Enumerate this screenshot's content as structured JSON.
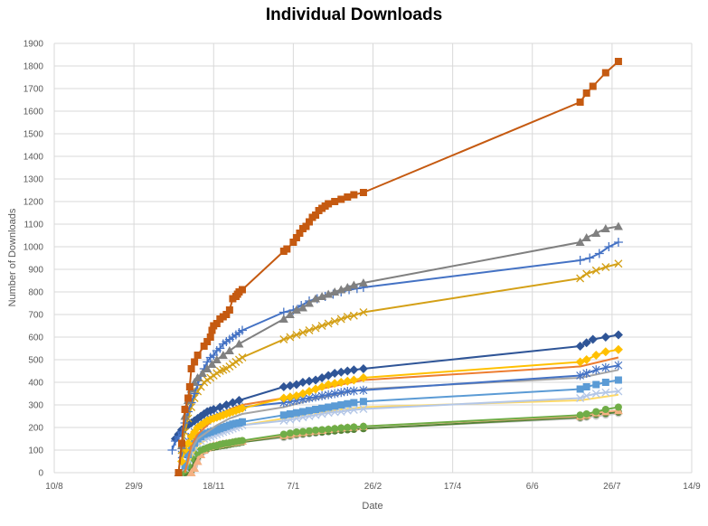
{
  "chart_data": {
    "type": "line",
    "title": "Individual Downloads",
    "xlabel": "Date",
    "ylabel": "Number of Downloads",
    "x_ticks": [
      "10/8",
      "29/9",
      "18/11",
      "7/1",
      "26/2",
      "17/4",
      "6/6",
      "26/7",
      "14/9"
    ],
    "x_tick_days": [
      0,
      50,
      100,
      150,
      200,
      250,
      300,
      350,
      400
    ],
    "ylim": [
      0,
      1900
    ],
    "y_ticks": [
      0,
      100,
      200,
      300,
      400,
      500,
      600,
      700,
      800,
      900,
      1000,
      1100,
      1200,
      1300,
      1400,
      1500,
      1600,
      1700,
      1800,
      1900
    ],
    "grid": true,
    "legend": "none",
    "series": [
      {
        "color": "#C55A11",
        "marker": "square",
        "x": [
          78,
          80,
          82,
          84,
          85,
          86,
          88,
          90,
          94,
          96,
          98,
          99,
          100,
          102,
          104,
          106,
          108,
          110,
          112,
          114,
          115,
          116,
          118,
          144,
          146,
          150,
          152,
          154,
          156,
          158,
          160,
          162,
          164,
          166,
          168,
          170,
          172,
          176,
          180,
          184,
          188,
          194,
          330,
          334,
          338,
          346,
          354
        ],
        "y": [
          0,
          130,
          280,
          330,
          380,
          460,
          490,
          520,
          560,
          580,
          600,
          630,
          650,
          660,
          680,
          690,
          700,
          720,
          770,
          780,
          790,
          800,
          810,
          980,
          990,
          1020,
          1040,
          1060,
          1080,
          1090,
          1110,
          1130,
          1140,
          1160,
          1170,
          1180,
          1190,
          1200,
          1210,
          1220,
          1230,
          1240,
          1640,
          1680,
          1710,
          1770,
          1820
        ]
      },
      {
        "color": "#808080",
        "marker": "triangle",
        "x": [
          78,
          80,
          82,
          84,
          86,
          88,
          90,
          93,
          96,
          99,
          102,
          106,
          110,
          116,
          144,
          148,
          152,
          156,
          160,
          164,
          168,
          172,
          176,
          180,
          184,
          188,
          194,
          330,
          334,
          340,
          346,
          354
        ],
        "y": [
          0,
          120,
          250,
          320,
          370,
          400,
          420,
          440,
          460,
          480,
          500,
          520,
          540,
          570,
          680,
          700,
          720,
          730,
          750,
          770,
          780,
          790,
          800,
          810,
          820,
          830,
          840,
          1020,
          1040,
          1060,
          1080,
          1090
        ]
      },
      {
        "color": "#4472C4",
        "marker": "plus",
        "x": [
          74,
          76,
          78,
          80,
          82,
          84,
          86,
          88,
          90,
          92,
          94,
          96,
          98,
          100,
          102,
          104,
          106,
          108,
          110,
          112,
          114,
          116,
          118,
          144,
          150,
          155,
          160,
          165,
          170,
          175,
          180,
          185,
          190,
          194,
          330,
          336,
          342,
          348,
          354
        ],
        "y": [
          100,
          140,
          160,
          180,
          220,
          270,
          310,
          350,
          390,
          430,
          460,
          490,
          510,
          520,
          540,
          550,
          570,
          580,
          590,
          600,
          610,
          620,
          630,
          710,
          720,
          740,
          760,
          770,
          780,
          790,
          800,
          810,
          815,
          820,
          940,
          950,
          970,
          1000,
          1020
        ]
      },
      {
        "color": "#D4A017",
        "marker": "x",
        "x": [
          80,
          82,
          84,
          86,
          88,
          90,
          92,
          94,
          96,
          98,
          100,
          102,
          104,
          106,
          108,
          110,
          112,
          114,
          116,
          118,
          144,
          148,
          152,
          156,
          160,
          164,
          168,
          172,
          176,
          180,
          184,
          188,
          194,
          330,
          334,
          340,
          346,
          354
        ],
        "y": [
          100,
          180,
          240,
          290,
          330,
          360,
          380,
          400,
          410,
          420,
          430,
          440,
          450,
          455,
          460,
          470,
          480,
          490,
          500,
          510,
          590,
          600,
          610,
          620,
          630,
          640,
          650,
          660,
          670,
          680,
          690,
          695,
          710,
          860,
          880,
          895,
          910,
          925
        ]
      },
      {
        "color": "#2F5597",
        "marker": "diamond",
        "x": [
          76,
          78,
          80,
          82,
          84,
          86,
          88,
          90,
          92,
          94,
          96,
          98,
          100,
          104,
          108,
          112,
          116,
          144,
          148,
          152,
          156,
          160,
          164,
          168,
          172,
          176,
          180,
          184,
          188,
          194,
          330,
          334,
          338,
          346,
          354
        ],
        "y": [
          150,
          170,
          190,
          200,
          210,
          220,
          230,
          240,
          250,
          260,
          270,
          275,
          280,
          290,
          300,
          310,
          320,
          380,
          385,
          390,
          400,
          405,
          410,
          420,
          430,
          440,
          445,
          450,
          455,
          460,
          560,
          575,
          590,
          600,
          610
        ]
      },
      {
        "color": "#FFC000",
        "marker": "diamond",
        "x": [
          80,
          82,
          84,
          86,
          88,
          90,
          92,
          94,
          96,
          98,
          100,
          102,
          104,
          106,
          108,
          110,
          112,
          114,
          116,
          118,
          144,
          148,
          152,
          156,
          160,
          164,
          168,
          172,
          176,
          180,
          184,
          188,
          194,
          330,
          334,
          340,
          346,
          354
        ],
        "y": [
          50,
          100,
          130,
          160,
          180,
          200,
          210,
          220,
          230,
          235,
          240,
          245,
          250,
          255,
          260,
          265,
          270,
          275,
          280,
          285,
          330,
          335,
          340,
          350,
          360,
          370,
          380,
          390,
          395,
          400,
          405,
          410,
          420,
          490,
          500,
          520,
          535,
          545
        ]
      },
      {
        "color": "#ED7D31",
        "marker": "none",
        "x": [
          82,
          86,
          90,
          96,
          102,
          110,
          118,
          144,
          160,
          180,
          194,
          330,
          354
        ],
        "y": [
          0,
          120,
          170,
          210,
          250,
          280,
          300,
          330,
          360,
          390,
          410,
          470,
          510
        ]
      },
      {
        "color": "#4472C4",
        "marker": "star",
        "x": [
          80,
          82,
          84,
          86,
          88,
          90,
          92,
          94,
          96,
          98,
          100,
          102,
          104,
          106,
          108,
          110,
          112,
          114,
          116,
          118,
          144,
          148,
          152,
          156,
          160,
          164,
          168,
          172,
          176,
          180,
          184,
          188,
          194,
          330,
          334,
          340,
          346,
          354
        ],
        "y": [
          80,
          110,
          140,
          160,
          180,
          200,
          210,
          220,
          230,
          240,
          245,
          250,
          255,
          260,
          265,
          270,
          275,
          280,
          285,
          290,
          310,
          315,
          320,
          325,
          330,
          335,
          340,
          345,
          350,
          355,
          360,
          362,
          365,
          430,
          440,
          455,
          465,
          475
        ]
      },
      {
        "color": "#A5A5A5",
        "marker": "none",
        "x": [
          82,
          86,
          90,
          96,
          102,
          110,
          118,
          144,
          160,
          180,
          194,
          330,
          354
        ],
        "y": [
          0,
          100,
          150,
          180,
          210,
          240,
          260,
          290,
          320,
          350,
          370,
          420,
          455
        ]
      },
      {
        "color": "#5B9BD5",
        "marker": "square",
        "x": [
          82,
          84,
          86,
          88,
          90,
          92,
          94,
          96,
          98,
          100,
          102,
          104,
          106,
          108,
          110,
          112,
          114,
          116,
          118,
          144,
          148,
          152,
          156,
          160,
          164,
          168,
          172,
          176,
          180,
          184,
          188,
          194,
          330,
          334,
          340,
          346,
          354
        ],
        "y": [
          30,
          80,
          110,
          130,
          150,
          160,
          170,
          175,
          180,
          185,
          190,
          195,
          200,
          205,
          210,
          215,
          218,
          220,
          225,
          255,
          260,
          265,
          270,
          275,
          280,
          285,
          290,
          295,
          300,
          305,
          310,
          315,
          370,
          380,
          390,
          400,
          410
        ]
      },
      {
        "color": "#B4C7E7",
        "marker": "x",
        "x": [
          82,
          84,
          86,
          88,
          90,
          92,
          94,
          96,
          98,
          100,
          102,
          104,
          106,
          108,
          110,
          112,
          114,
          116,
          118,
          144,
          148,
          152,
          156,
          160,
          164,
          168,
          172,
          176,
          180,
          184,
          188,
          194,
          330,
          334,
          340,
          346,
          354
        ],
        "y": [
          20,
          60,
          90,
          110,
          130,
          140,
          150,
          155,
          160,
          165,
          170,
          175,
          180,
          185,
          190,
          195,
          200,
          205,
          210,
          230,
          235,
          240,
          245,
          250,
          255,
          260,
          265,
          268,
          270,
          275,
          278,
          282,
          330,
          340,
          350,
          355,
          360
        ]
      },
      {
        "color": "#FFD966",
        "marker": "none",
        "x": [
          82,
          86,
          90,
          96,
          102,
          110,
          118,
          144,
          160,
          180,
          194,
          330,
          354
        ],
        "y": [
          0,
          70,
          120,
          150,
          180,
          200,
          210,
          240,
          260,
          280,
          290,
          320,
          345
        ]
      },
      {
        "color": "#70AD47",
        "marker": "circle",
        "x": [
          80,
          82,
          84,
          86,
          88,
          90,
          92,
          94,
          96,
          98,
          100,
          102,
          104,
          106,
          108,
          110,
          112,
          114,
          116,
          118,
          144,
          148,
          152,
          156,
          160,
          164,
          168,
          172,
          176,
          180,
          184,
          188,
          194,
          330,
          334,
          340,
          346,
          354
        ],
        "y": [
          0,
          10,
          30,
          60,
          80,
          90,
          100,
          105,
          110,
          115,
          118,
          120,
          125,
          128,
          130,
          132,
          135,
          138,
          140,
          142,
          170,
          175,
          180,
          182,
          185,
          188,
          190,
          192,
          195,
          198,
          200,
          202,
          205,
          255,
          260,
          270,
          280,
          290
        ]
      },
      {
        "color": "#F4B183",
        "marker": "triangle",
        "x": [
          86,
          88,
          90,
          92,
          94,
          96,
          98,
          100,
          102,
          104,
          106,
          108,
          110,
          112,
          114,
          116,
          118,
          144,
          148,
          152,
          156,
          160,
          164,
          168,
          172,
          176,
          180,
          184,
          188,
          194,
          330,
          334,
          340,
          346,
          354
        ],
        "y": [
          0,
          20,
          50,
          80,
          100,
          110,
          115,
          120,
          122,
          125,
          128,
          130,
          132,
          134,
          136,
          138,
          140,
          165,
          170,
          175,
          178,
          182,
          185,
          188,
          192,
          195,
          198,
          200,
          202,
          205,
          250,
          255,
          265,
          270,
          275
        ]
      },
      {
        "color": "#548235",
        "marker": "circle",
        "x": [
          82,
          84,
          86,
          88,
          90,
          92,
          94,
          96,
          98,
          100,
          102,
          104,
          106,
          108,
          110,
          112,
          114,
          116,
          118,
          144,
          148,
          152,
          156,
          160,
          164,
          168,
          172,
          176,
          180,
          184,
          188,
          194,
          330,
          334,
          340,
          346,
          354
        ],
        "y": [
          0,
          0,
          10,
          60,
          70,
          90,
          100,
          105,
          110,
          112,
          115,
          118,
          120,
          122,
          125,
          128,
          130,
          132,
          135,
          160,
          165,
          170,
          172,
          175,
          178,
          180,
          182,
          185,
          188,
          190,
          192,
          195,
          245,
          250,
          258,
          262,
          268
        ]
      },
      {
        "color": "#C9C9C9",
        "marker": "circle",
        "x": [
          86,
          88,
          90,
          92,
          94,
          96,
          98,
          100,
          102,
          104,
          106,
          108,
          110,
          112,
          114,
          116,
          118,
          144,
          148,
          152,
          156,
          160,
          164,
          168,
          172,
          176,
          180,
          184,
          188,
          194,
          330,
          334,
          340,
          346,
          354
        ],
        "y": [
          0,
          30,
          60,
          80,
          95,
          105,
          110,
          115,
          118,
          120,
          122,
          125,
          128,
          130,
          132,
          134,
          136,
          155,
          160,
          165,
          168,
          172,
          175,
          178,
          182,
          185,
          188,
          190,
          192,
          195,
          240,
          245,
          250,
          255,
          262
        ]
      }
    ]
  }
}
